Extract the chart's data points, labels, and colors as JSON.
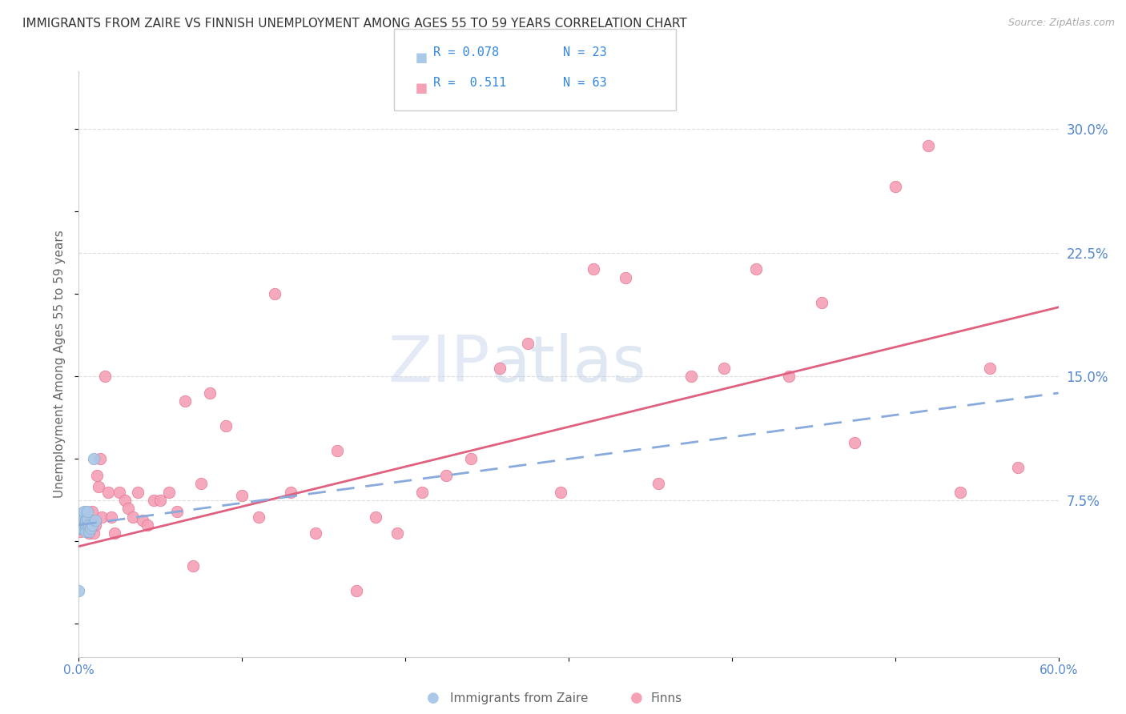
{
  "title": "IMMIGRANTS FROM ZAIRE VS FINNISH UNEMPLOYMENT AMONG AGES 55 TO 59 YEARS CORRELATION CHART",
  "source": "Source: ZipAtlas.com",
  "ylabel": "Unemployment Among Ages 55 to 59 years",
  "xlim": [
    0.0,
    0.6
  ],
  "ylim": [
    -0.02,
    0.335
  ],
  "xticks": [
    0.0,
    0.1,
    0.2,
    0.3,
    0.4,
    0.5,
    0.6
  ],
  "xtick_labels": [
    "0.0%",
    "",
    "",
    "",
    "",
    "",
    "60.0%"
  ],
  "yticks_right": [
    0.075,
    0.15,
    0.225,
    0.3
  ],
  "ytick_right_labels": [
    "7.5%",
    "15.0%",
    "22.5%",
    "30.0%"
  ],
  "legend_entries": [
    {
      "label_r": "R = 0.078",
      "label_n": "N = 23",
      "color": "#aac8e8",
      "edge_color": "#88aacc"
    },
    {
      "label_r": "R =  0.511",
      "label_n": "N = 63",
      "color": "#f5a0b5",
      "edge_color": "#e07090"
    }
  ],
  "series_zaire": {
    "color": "#aac8e8",
    "edge_color": "#88aacc",
    "x": [
      0.0,
      0.0,
      0.001,
      0.001,
      0.001,
      0.002,
      0.002,
      0.002,
      0.003,
      0.003,
      0.003,
      0.004,
      0.004,
      0.004,
      0.005,
      0.005,
      0.005,
      0.006,
      0.006,
      0.007,
      0.008,
      0.009,
      0.01
    ],
    "y": [
      0.02,
      0.058,
      0.058,
      0.062,
      0.065,
      0.058,
      0.063,
      0.067,
      0.06,
      0.064,
      0.068,
      0.06,
      0.063,
      0.056,
      0.06,
      0.064,
      0.068,
      0.056,
      0.06,
      0.058,
      0.06,
      0.1,
      0.063
    ]
  },
  "series_finns": {
    "color": "#f5a0b5",
    "edge_color": "#e07090",
    "x": [
      0.001,
      0.002,
      0.003,
      0.004,
      0.005,
      0.006,
      0.007,
      0.008,
      0.009,
      0.01,
      0.011,
      0.012,
      0.013,
      0.014,
      0.016,
      0.018,
      0.02,
      0.022,
      0.025,
      0.028,
      0.03,
      0.033,
      0.036,
      0.039,
      0.042,
      0.046,
      0.05,
      0.055,
      0.06,
      0.065,
      0.07,
      0.075,
      0.08,
      0.09,
      0.1,
      0.11,
      0.12,
      0.13,
      0.145,
      0.158,
      0.17,
      0.182,
      0.195,
      0.21,
      0.225,
      0.24,
      0.258,
      0.275,
      0.295,
      0.315,
      0.335,
      0.355,
      0.375,
      0.395,
      0.415,
      0.435,
      0.455,
      0.475,
      0.5,
      0.52,
      0.54,
      0.558,
      0.575
    ],
    "y": [
      0.056,
      0.06,
      0.058,
      0.063,
      0.06,
      0.055,
      0.063,
      0.068,
      0.055,
      0.06,
      0.09,
      0.083,
      0.1,
      0.065,
      0.15,
      0.08,
      0.065,
      0.055,
      0.08,
      0.075,
      0.07,
      0.065,
      0.08,
      0.063,
      0.06,
      0.075,
      0.075,
      0.08,
      0.068,
      0.135,
      0.035,
      0.085,
      0.14,
      0.12,
      0.078,
      0.065,
      0.2,
      0.08,
      0.055,
      0.105,
      0.02,
      0.065,
      0.055,
      0.08,
      0.09,
      0.1,
      0.155,
      0.17,
      0.08,
      0.215,
      0.21,
      0.085,
      0.15,
      0.155,
      0.215,
      0.15,
      0.195,
      0.11,
      0.265,
      0.29,
      0.08,
      0.155,
      0.095
    ]
  },
  "trendline_zaire": {
    "color": "#88aadd",
    "x_start": 0.0,
    "x_end": 0.6,
    "y_start": 0.06,
    "y_end": 0.14
  },
  "trendline_finns": {
    "color": "#e06080",
    "x_start": 0.0,
    "x_end": 0.6,
    "y_start": 0.047,
    "y_end": 0.192
  },
  "watermark_zip": "ZIP",
  "watermark_atlas": "atlas",
  "background_color": "#ffffff",
  "grid_color": "#dddddd",
  "title_fontsize": 11,
  "axis_label_fontsize": 11,
  "tick_fontsize": 11,
  "marker_size": 110
}
